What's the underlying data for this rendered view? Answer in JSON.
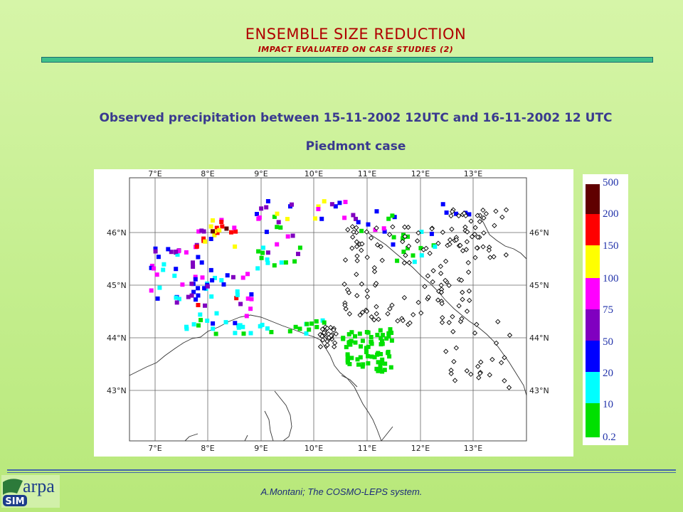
{
  "slide": {
    "title": "ENSEMBLE SIZE REDUCTION",
    "subtitle": "IMPACT EVALUATED ON CASE STUDIES (2)",
    "heading": "Observed precipitation between 15-11-2002  12UTC and 16-11-2002  12 UTC",
    "heading2": "Piedmont case",
    "footer": "A.Montani; The COSMO-LEPS system."
  },
  "logo": {
    "text": "arpa",
    "sub": "SIM"
  },
  "map": {
    "lon_labels": [
      "7°E",
      "8°E",
      "9°E",
      "10°E",
      "11°E",
      "12°E",
      "13°E"
    ],
    "lat_labels": [
      "46°N",
      "45°N",
      "44°N",
      "43°N"
    ],
    "lon_range": [
      6.0,
      13.9
    ],
    "lat_range": [
      42.6,
      46.9
    ],
    "colors": {
      "0.2": "#00e000",
      "10": "#00ffff",
      "20": "#0000ff",
      "50": "#8000c0",
      "75": "#ff00ff",
      "100": "#ffff00",
      "150": "#ff0000",
      "200": "#600000"
    }
  },
  "legend": {
    "labels": [
      "500",
      "200",
      "150",
      "100",
      "75",
      "50",
      "20",
      "10",
      "0.2"
    ],
    "colors": [
      "#600000",
      "#ff0000",
      "#ffff00",
      "#ff00ff",
      "#8000c0",
      "#0000ff",
      "#00ffff",
      "#00e000"
    ]
  }
}
